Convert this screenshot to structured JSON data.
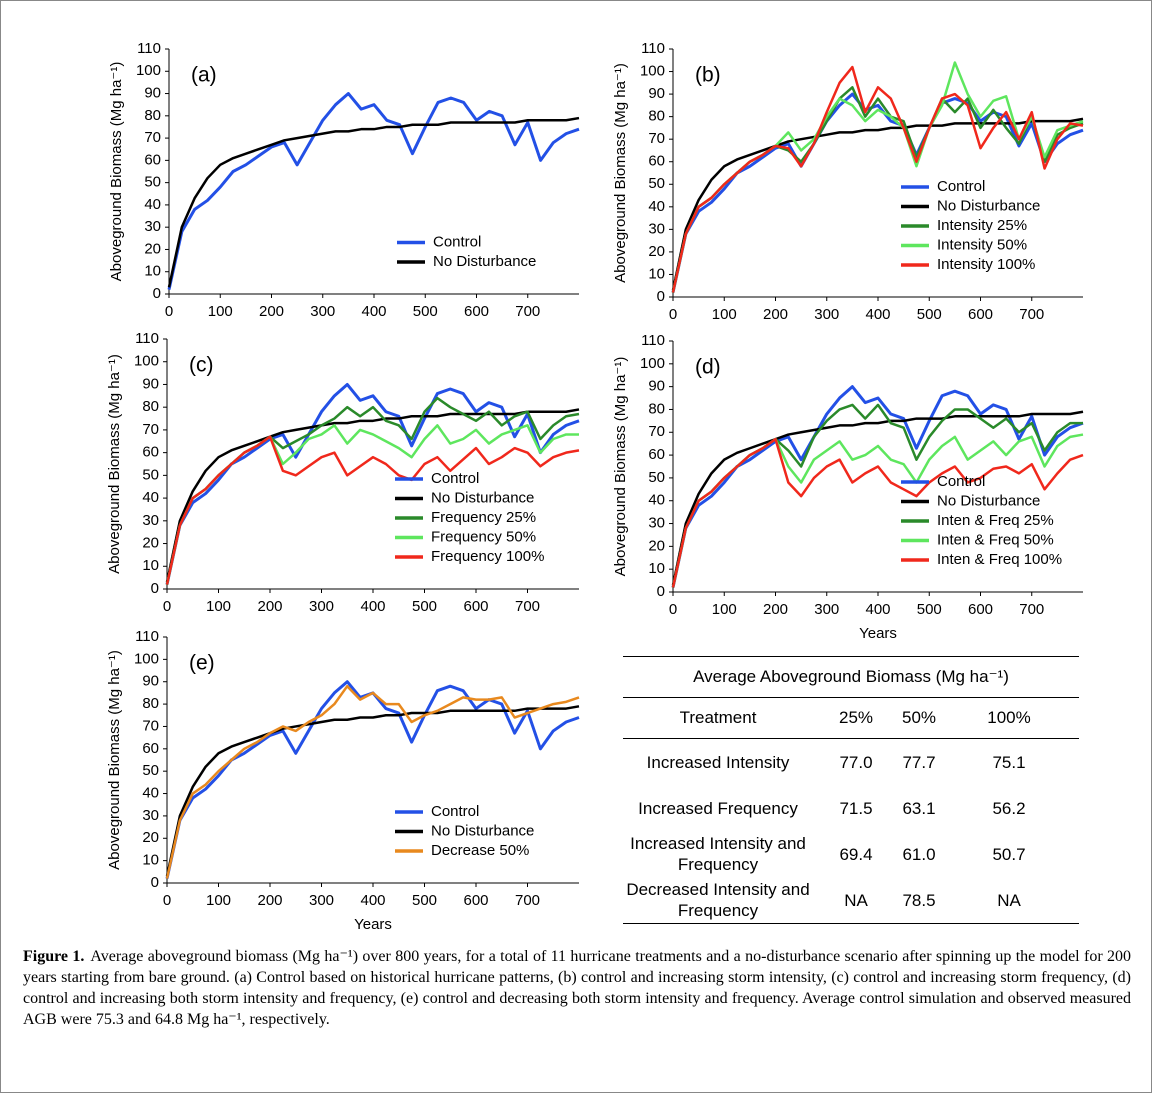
{
  "chart_data": [
    {
      "type": "line",
      "annotation": "(a)",
      "y_label": "Aboveground Biomass (Mg ha⁻¹)",
      "xlim": [
        0,
        800
      ],
      "ylim": [
        0,
        110
      ],
      "xticks": [
        0,
        100,
        200,
        300,
        400,
        500,
        600,
        700
      ],
      "yticks": [
        0,
        10,
        20,
        30,
        40,
        50,
        60,
        70,
        80,
        90,
        100,
        110
      ],
      "legend": "lower right",
      "x": [
        0,
        25,
        50,
        75,
        100,
        125,
        150,
        175,
        200,
        225,
        250,
        275,
        300,
        325,
        350,
        375,
        400,
        425,
        450,
        475,
        500,
        525,
        550,
        575,
        600,
        625,
        650,
        675,
        700,
        725,
        750,
        775,
        800
      ],
      "series": [
        {
          "name": "Control",
          "color": "#2350e6",
          "values": [
            2,
            28,
            38,
            42,
            48,
            55,
            58,
            62,
            66,
            68,
            58,
            68,
            78,
            85,
            90,
            83,
            85,
            78,
            76,
            63,
            75,
            86,
            88,
            86,
            78,
            82,
            80,
            67,
            77,
            60,
            68,
            72,
            74
          ]
        },
        {
          "name": "No Disturbance",
          "color": "#000000",
          "values": [
            3,
            30,
            43,
            52,
            58,
            61,
            63,
            65,
            67,
            69,
            70,
            71,
            72,
            73,
            73,
            74,
            74,
            75,
            75,
            76,
            76,
            76,
            77,
            77,
            77,
            77,
            77,
            77,
            78,
            78,
            78,
            78,
            79
          ]
        }
      ]
    },
    {
      "type": "line",
      "annotation": "(b)",
      "y_label": "Aboveground Biomass (Mg ha⁻¹)",
      "xlim": [
        0,
        800
      ],
      "ylim": [
        0,
        110
      ],
      "xticks": [
        0,
        100,
        200,
        300,
        400,
        500,
        600,
        700
      ],
      "yticks": [
        0,
        10,
        20,
        30,
        40,
        50,
        60,
        70,
        80,
        90,
        100,
        110
      ],
      "legend": "lower right",
      "x": [
        0,
        25,
        50,
        75,
        100,
        125,
        150,
        175,
        200,
        225,
        250,
        275,
        300,
        325,
        350,
        375,
        400,
        425,
        450,
        475,
        500,
        525,
        550,
        575,
        600,
        625,
        650,
        675,
        700,
        725,
        750,
        775,
        800
      ],
      "series": [
        {
          "name": "Control",
          "color": "#2350e6",
          "values": [
            2,
            28,
            38,
            42,
            48,
            55,
            58,
            62,
            66,
            68,
            58,
            68,
            78,
            85,
            90,
            83,
            85,
            78,
            76,
            63,
            75,
            86,
            88,
            86,
            78,
            82,
            80,
            67,
            77,
            60,
            68,
            72,
            74
          ]
        },
        {
          "name": "No Disturbance",
          "color": "#000000",
          "values": [
            3,
            30,
            43,
            52,
            58,
            61,
            63,
            65,
            67,
            69,
            70,
            71,
            72,
            73,
            73,
            74,
            74,
            75,
            75,
            76,
            76,
            76,
            77,
            77,
            77,
            77,
            77,
            77,
            78,
            78,
            78,
            78,
            79
          ]
        },
        {
          "name": "Intensity 25%",
          "color": "#2a8a2a",
          "values": [
            2,
            28,
            40,
            44,
            50,
            55,
            60,
            63,
            67,
            65,
            60,
            68,
            78,
            88,
            93,
            80,
            88,
            80,
            78,
            62,
            75,
            88,
            82,
            88,
            75,
            83,
            75,
            68,
            80,
            60,
            72,
            75,
            77
          ]
        },
        {
          "name": "Intensity 50%",
          "color": "#5ee65e",
          "values": [
            2,
            28,
            40,
            44,
            50,
            55,
            60,
            63,
            67,
            73,
            65,
            70,
            80,
            88,
            85,
            78,
            83,
            80,
            75,
            58,
            75,
            85,
            104,
            90,
            80,
            87,
            89,
            70,
            80,
            62,
            74,
            76,
            78
          ]
        },
        {
          "name": "Intensity 100%",
          "color": "#f0281c",
          "values": [
            2,
            28,
            40,
            44,
            50,
            55,
            60,
            63,
            67,
            66,
            58,
            68,
            82,
            95,
            102,
            82,
            93,
            88,
            75,
            60,
            75,
            88,
            90,
            85,
            66,
            75,
            82,
            70,
            82,
            57,
            70,
            77,
            76
          ]
        }
      ]
    },
    {
      "type": "line",
      "annotation": "(c)",
      "y_label": "Aboveground Biomass (Mg ha⁻¹)",
      "xlim": [
        0,
        800
      ],
      "ylim": [
        0,
        110
      ],
      "xticks": [
        0,
        100,
        200,
        300,
        400,
        500,
        600,
        700
      ],
      "yticks": [
        0,
        10,
        20,
        30,
        40,
        50,
        60,
        70,
        80,
        90,
        100,
        110
      ],
      "legend": "lower right",
      "x": [
        0,
        25,
        50,
        75,
        100,
        125,
        150,
        175,
        200,
        225,
        250,
        275,
        300,
        325,
        350,
        375,
        400,
        425,
        450,
        475,
        500,
        525,
        550,
        575,
        600,
        625,
        650,
        675,
        700,
        725,
        750,
        775,
        800
      ],
      "series": [
        {
          "name": "Control",
          "color": "#2350e6",
          "values": [
            2,
            28,
            38,
            42,
            48,
            55,
            58,
            62,
            66,
            68,
            58,
            68,
            78,
            85,
            90,
            83,
            85,
            78,
            76,
            63,
            75,
            86,
            88,
            86,
            78,
            82,
            80,
            67,
            77,
            60,
            68,
            72,
            74
          ]
        },
        {
          "name": "No Disturbance",
          "color": "#000000",
          "values": [
            3,
            30,
            43,
            52,
            58,
            61,
            63,
            65,
            67,
            69,
            70,
            71,
            72,
            73,
            73,
            74,
            74,
            75,
            75,
            76,
            76,
            76,
            77,
            77,
            77,
            77,
            77,
            77,
            78,
            78,
            78,
            78,
            79
          ]
        },
        {
          "name": "Frequency 25%",
          "color": "#2a8a2a",
          "values": [
            2,
            28,
            40,
            44,
            50,
            55,
            60,
            63,
            67,
            62,
            65,
            68,
            72,
            75,
            80,
            76,
            80,
            74,
            72,
            66,
            78,
            84,
            80,
            77,
            74,
            78,
            72,
            76,
            78,
            66,
            72,
            76,
            77
          ]
        },
        {
          "name": "Frequency 50%",
          "color": "#5ee65e",
          "values": [
            2,
            28,
            40,
            44,
            50,
            55,
            60,
            63,
            67,
            55,
            60,
            66,
            68,
            72,
            64,
            70,
            68,
            65,
            62,
            58,
            66,
            72,
            64,
            66,
            70,
            64,
            68,
            70,
            72,
            60,
            66,
            68,
            68
          ]
        },
        {
          "name": "Frequency 100%",
          "color": "#f0281c",
          "values": [
            2,
            28,
            40,
            44,
            50,
            55,
            60,
            63,
            67,
            52,
            50,
            54,
            58,
            60,
            50,
            54,
            58,
            55,
            50,
            48,
            55,
            58,
            52,
            57,
            62,
            55,
            58,
            62,
            60,
            54,
            58,
            60,
            61
          ]
        }
      ]
    },
    {
      "type": "line",
      "annotation": "(d)",
      "y_label": "Aboveground Biomass (Mg ha⁻¹)",
      "x_label": "Years",
      "xlim": [
        0,
        800
      ],
      "ylim": [
        0,
        110
      ],
      "xticks": [
        0,
        100,
        200,
        300,
        400,
        500,
        600,
        700
      ],
      "yticks": [
        0,
        10,
        20,
        30,
        40,
        50,
        60,
        70,
        80,
        90,
        100,
        110
      ],
      "legend": "lower right",
      "x": [
        0,
        25,
        50,
        75,
        100,
        125,
        150,
        175,
        200,
        225,
        250,
        275,
        300,
        325,
        350,
        375,
        400,
        425,
        450,
        475,
        500,
        525,
        550,
        575,
        600,
        625,
        650,
        675,
        700,
        725,
        750,
        775,
        800
      ],
      "series": [
        {
          "name": "Control",
          "color": "#2350e6",
          "values": [
            2,
            28,
            38,
            42,
            48,
            55,
            58,
            62,
            66,
            68,
            58,
            68,
            78,
            85,
            90,
            83,
            85,
            78,
            76,
            63,
            75,
            86,
            88,
            86,
            78,
            82,
            80,
            67,
            77,
            60,
            68,
            72,
            74
          ]
        },
        {
          "name": "No Disturbance",
          "color": "#000000",
          "values": [
            3,
            30,
            43,
            52,
            58,
            61,
            63,
            65,
            67,
            69,
            70,
            71,
            72,
            73,
            73,
            74,
            74,
            75,
            75,
            76,
            76,
            76,
            77,
            77,
            77,
            77,
            77,
            77,
            78,
            78,
            78,
            78,
            79
          ]
        },
        {
          "name": "Inten & Freq 25%",
          "color": "#2a8a2a",
          "values": [
            2,
            28,
            40,
            44,
            50,
            55,
            60,
            63,
            67,
            62,
            55,
            68,
            75,
            80,
            82,
            76,
            82,
            74,
            72,
            58,
            68,
            75,
            80,
            80,
            76,
            72,
            76,
            70,
            74,
            62,
            70,
            74,
            74
          ]
        },
        {
          "name": "Inten & Freq 50%",
          "color": "#5ee65e",
          "values": [
            2,
            28,
            40,
            44,
            50,
            55,
            60,
            63,
            67,
            55,
            48,
            58,
            62,
            66,
            58,
            60,
            64,
            58,
            56,
            48,
            58,
            64,
            68,
            58,
            62,
            66,
            60,
            66,
            68,
            55,
            64,
            68,
            69
          ]
        },
        {
          "name": "Inten & Freq 100%",
          "color": "#f0281c",
          "values": [
            2,
            28,
            40,
            44,
            50,
            55,
            60,
            63,
            67,
            48,
            42,
            50,
            55,
            58,
            48,
            52,
            55,
            48,
            45,
            42,
            48,
            52,
            55,
            48,
            50,
            54,
            55,
            52,
            56,
            45,
            52,
            58,
            60
          ]
        }
      ]
    },
    {
      "type": "line",
      "annotation": "(e)",
      "y_label": "Aboveground Biomass (Mg ha⁻¹)",
      "x_label": "Years",
      "xlim": [
        0,
        800
      ],
      "ylim": [
        0,
        110
      ],
      "xticks": [
        0,
        100,
        200,
        300,
        400,
        500,
        600,
        700
      ],
      "yticks": [
        0,
        10,
        20,
        30,
        40,
        50,
        60,
        70,
        80,
        90,
        100,
        110
      ],
      "legend": "lower right",
      "x": [
        0,
        25,
        50,
        75,
        100,
        125,
        150,
        175,
        200,
        225,
        250,
        275,
        300,
        325,
        350,
        375,
        400,
        425,
        450,
        475,
        500,
        525,
        550,
        575,
        600,
        625,
        650,
        675,
        700,
        725,
        750,
        775,
        800
      ],
      "series": [
        {
          "name": "Control",
          "color": "#2350e6",
          "values": [
            2,
            28,
            38,
            42,
            48,
            55,
            58,
            62,
            66,
            68,
            58,
            68,
            78,
            85,
            90,
            83,
            85,
            78,
            76,
            63,
            75,
            86,
            88,
            86,
            78,
            82,
            80,
            67,
            77,
            60,
            68,
            72,
            74
          ]
        },
        {
          "name": "No Disturbance",
          "color": "#000000",
          "values": [
            3,
            30,
            43,
            52,
            58,
            61,
            63,
            65,
            67,
            69,
            70,
            71,
            72,
            73,
            73,
            74,
            74,
            75,
            75,
            76,
            76,
            76,
            77,
            77,
            77,
            77,
            77,
            77,
            78,
            78,
            78,
            78,
            79
          ]
        },
        {
          "name": "Decrease 50%",
          "color": "#e8891e",
          "values": [
            2,
            28,
            40,
            44,
            50,
            55,
            60,
            63,
            67,
            70,
            68,
            72,
            75,
            80,
            88,
            82,
            85,
            80,
            80,
            72,
            75,
            77,
            80,
            83,
            82,
            82,
            83,
            74,
            76,
            78,
            80,
            81,
            83
          ]
        }
      ]
    }
  ],
  "table": {
    "title": "Average Aboveground Biomass (Mg ha⁻¹)",
    "columns": [
      "Treatment",
      "25%",
      "50%",
      "100%"
    ],
    "rows": [
      [
        "Increased Intensity",
        "77.0",
        "77.7",
        "75.1"
      ],
      [
        "Increased Frequency",
        "71.5",
        "63.1",
        "56.2"
      ],
      [
        "Increased Intensity and Frequency",
        "69.4",
        "61.0",
        "50.7"
      ],
      [
        "Decreased Intensity and Frequency",
        "NA",
        "78.5",
        "NA"
      ]
    ]
  },
  "caption": {
    "label": "Figure 1.",
    "text": "Average aboveground biomass (Mg ha⁻¹) over 800 years, for a total of 11 hurricane treatments and a no-disturbance scenario after spinning up the model for 200 years starting from bare ground. (a) Control based on historical hurricane patterns, (b) control and increasing storm intensity, (c) control and increasing storm frequency, (d) control and increasing both storm intensity and frequency, (e) control and decreasing both storm intensity and frequency. Average control simulation and observed measured AGB were 75.3 and 64.8 Mg ha⁻¹, respectively."
  }
}
